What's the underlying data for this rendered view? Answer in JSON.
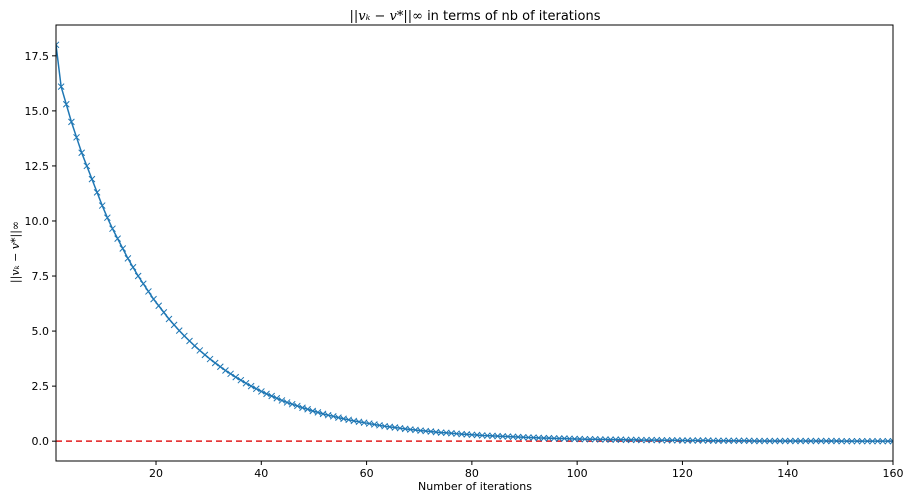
{
  "chart_data": {
    "type": "line",
    "title": {
      "math": "||vₖ − v*||∞",
      "text": " in terms of nb of iterations"
    },
    "xlabel": "Number of iterations",
    "ylabel": "||vₖ − v*||∞",
    "xlim": [
      1,
      160
    ],
    "ylim": [
      -0.9,
      18.9
    ],
    "x_ticks": [
      20,
      40,
      60,
      80,
      100,
      120,
      140,
      160
    ],
    "y_ticks": [
      0.0,
      2.5,
      5.0,
      7.5,
      10.0,
      12.5,
      15.0,
      17.5
    ],
    "y_tick_labels": [
      "0.0",
      "2.5",
      "5.0",
      "7.5",
      "10.0",
      "12.5",
      "15.0",
      "17.5"
    ],
    "grid": false,
    "series": [
      {
        "marker": "x",
        "color": "#1f77b4",
        "x_start": 1,
        "x_end": 160,
        "values": [
          18.0,
          16.1,
          15.3,
          14.5,
          13.8,
          13.1,
          12.5,
          11.9,
          11.3,
          10.7,
          10.15,
          9.65,
          9.2,
          8.75,
          8.3,
          7.9,
          7.5,
          7.15,
          6.8,
          6.45,
          6.15,
          5.85,
          5.55,
          5.28,
          5.02,
          4.78,
          4.55,
          4.33,
          4.12,
          3.92,
          3.73,
          3.55,
          3.38,
          3.21,
          3.06,
          2.91,
          2.77,
          2.63,
          2.5,
          2.38,
          2.26,
          2.15,
          2.05,
          1.95,
          1.85,
          1.76,
          1.68,
          1.6,
          1.52,
          1.45,
          1.37,
          1.31,
          1.24,
          1.18,
          1.13,
          1.07,
          1.02,
          0.97,
          0.92,
          0.88,
          0.84,
          0.8,
          0.76,
          0.72,
          0.68,
          0.65,
          0.62,
          0.59,
          0.56,
          0.53,
          0.51,
          0.48,
          0.46,
          0.44,
          0.41,
          0.39,
          0.38,
          0.36,
          0.34,
          0.32,
          0.31,
          0.29,
          0.28,
          0.26,
          0.25,
          0.24,
          0.23,
          0.22,
          0.21,
          0.2,
          0.19,
          0.18,
          0.17,
          0.16,
          0.15,
          0.14,
          0.14,
          0.13,
          0.12,
          0.12,
          0.11,
          0.1,
          0.1,
          0.09,
          0.09,
          0.09,
          0.08,
          0.08,
          0.07,
          0.07,
          0.07,
          0.06,
          0.06,
          0.06,
          0.05,
          0.05,
          0.05,
          0.05,
          0.04,
          0.04,
          0.04,
          0.04,
          0.03,
          0.03,
          0.03,
          0.03,
          0.03,
          0.03,
          0.02,
          0.02,
          0.02,
          0.02,
          0.02,
          0.02,
          0.02,
          0.02,
          0.01,
          0.01,
          0.01,
          0.01,
          0.01,
          0.01,
          0.01,
          0.01,
          0.01,
          0.01,
          0.01,
          0.01,
          0.01,
          0.01,
          0.01,
          0.01,
          0.01,
          0.0,
          0.0,
          0.0,
          0.0,
          0.0,
          0.0,
          0.0,
          0.0,
          0.0,
          0.0,
          0.0
        ]
      }
    ],
    "reference_line": {
      "y": 0.0,
      "color": "#e31a1c",
      "style": "dashed"
    }
  }
}
